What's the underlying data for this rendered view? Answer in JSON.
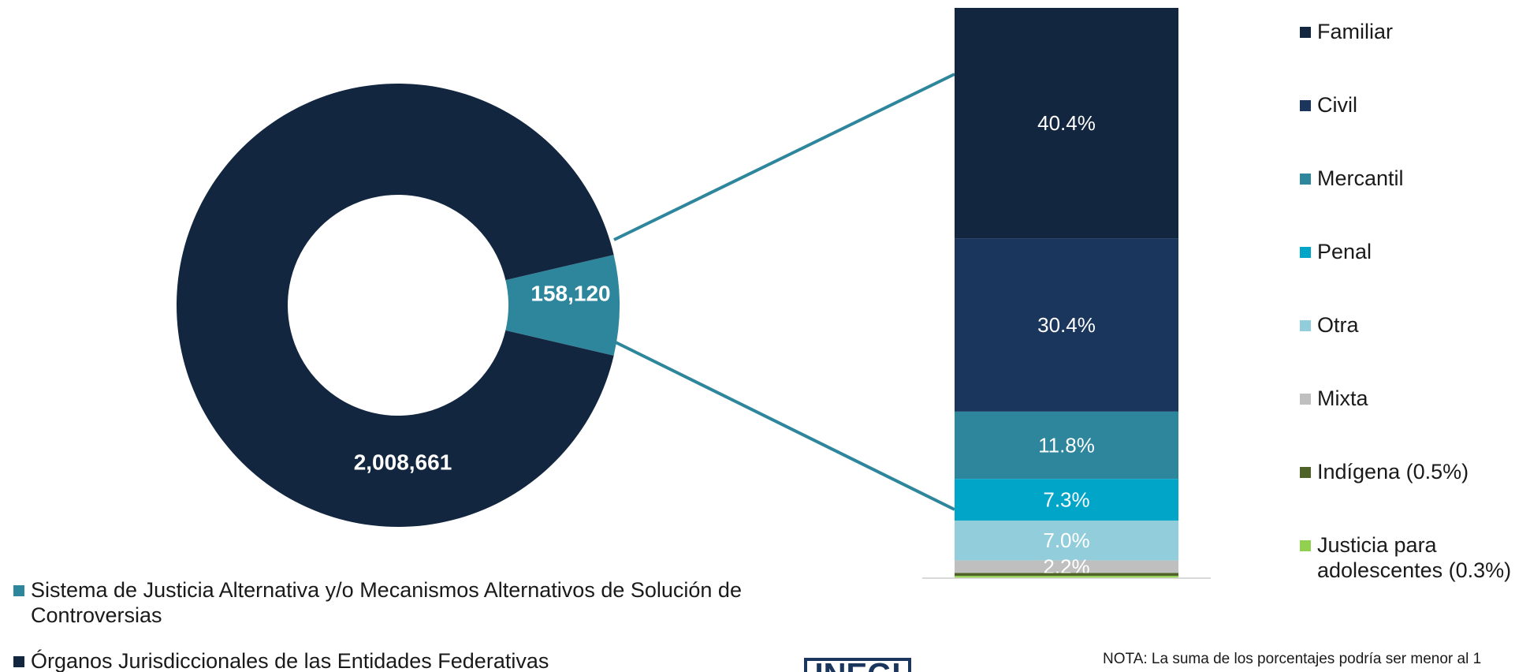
{
  "chart_data": [
    {
      "type": "donut",
      "categories": [
        "Sistema de Justicia Alternativa y/o Mecanismos Alternativos de Solución de Controversias",
        "Órganos Jurisdiccionales de las Entidades Federativas"
      ],
      "values": [
        158120,
        2008661
      ],
      "value_labels": [
        "158,120",
        "2,008,661"
      ],
      "colors": [
        "#2e869c",
        "#12263f"
      ],
      "legend": "bottom-left"
    },
    {
      "type": "stacked-bar",
      "series": [
        {
          "name": "Familiar",
          "color": "#12263f",
          "values": [
            40.4
          ],
          "value_labels": [
            "40.4%"
          ]
        },
        {
          "name": "Civil",
          "color": "#1b365d",
          "values": [
            30.4
          ],
          "value_labels": [
            "30.4%"
          ]
        },
        {
          "name": "Mercantil",
          "color": "#2e869c",
          "values": [
            11.8
          ],
          "value_labels": [
            "11.8%"
          ]
        },
        {
          "name": "Penal",
          "color": "#00a5c8",
          "values": [
            7.3
          ],
          "value_labels": [
            "7.3%"
          ]
        },
        {
          "name": "Otra",
          "color": "#92cddc",
          "values": [
            7.0
          ],
          "value_labels": [
            "7.0%"
          ]
        },
        {
          "name": "Mixta",
          "color": "#bfbfbf",
          "values": [
            2.2
          ],
          "value_labels": [
            "2.2%"
          ]
        },
        {
          "name": "Indígena (0.5%)",
          "color": "#4f6228",
          "values": [
            0.5
          ]
        },
        {
          "name": "Justicia para adolescentes (0.3%)",
          "color": "#92d050",
          "values": [
            0.3
          ]
        }
      ],
      "legend": "right"
    }
  ],
  "note": "NOTA: La suma de los porcentajes podría ser menor al 1",
  "logo": "INEGI"
}
